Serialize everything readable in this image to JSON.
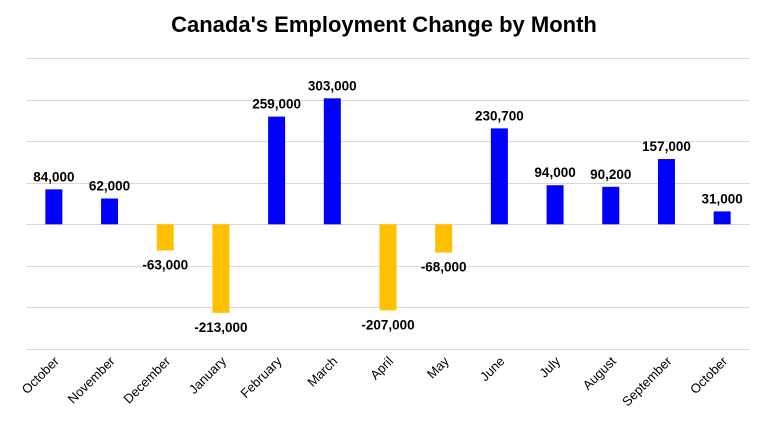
{
  "chart_data": {
    "type": "bar",
    "title": "Canada's Employment Change by Month",
    "xlabel": "",
    "ylabel": "",
    "categories": [
      "October",
      "November",
      "December",
      "January",
      "February",
      "March",
      "April",
      "May",
      "June",
      "July",
      "August",
      "September",
      "October"
    ],
    "values": [
      84000,
      62000,
      -63000,
      -213000,
      259000,
      303000,
      -207000,
      -68000,
      230700,
      94000,
      90200,
      157000,
      31000
    ],
    "data_labels": [
      "84,000",
      "62,000",
      "-63,000",
      "-213,000",
      "259,000",
      "303,000",
      "-207,000",
      "-68,000",
      "230,700",
      "94,000",
      "90,200",
      "157,000",
      "31,000"
    ],
    "ylim": [
      -300000,
      400000
    ],
    "grid": true,
    "legend": "none",
    "colors": {
      "positive": "#0000ff",
      "negative": "#ffc000"
    }
  }
}
